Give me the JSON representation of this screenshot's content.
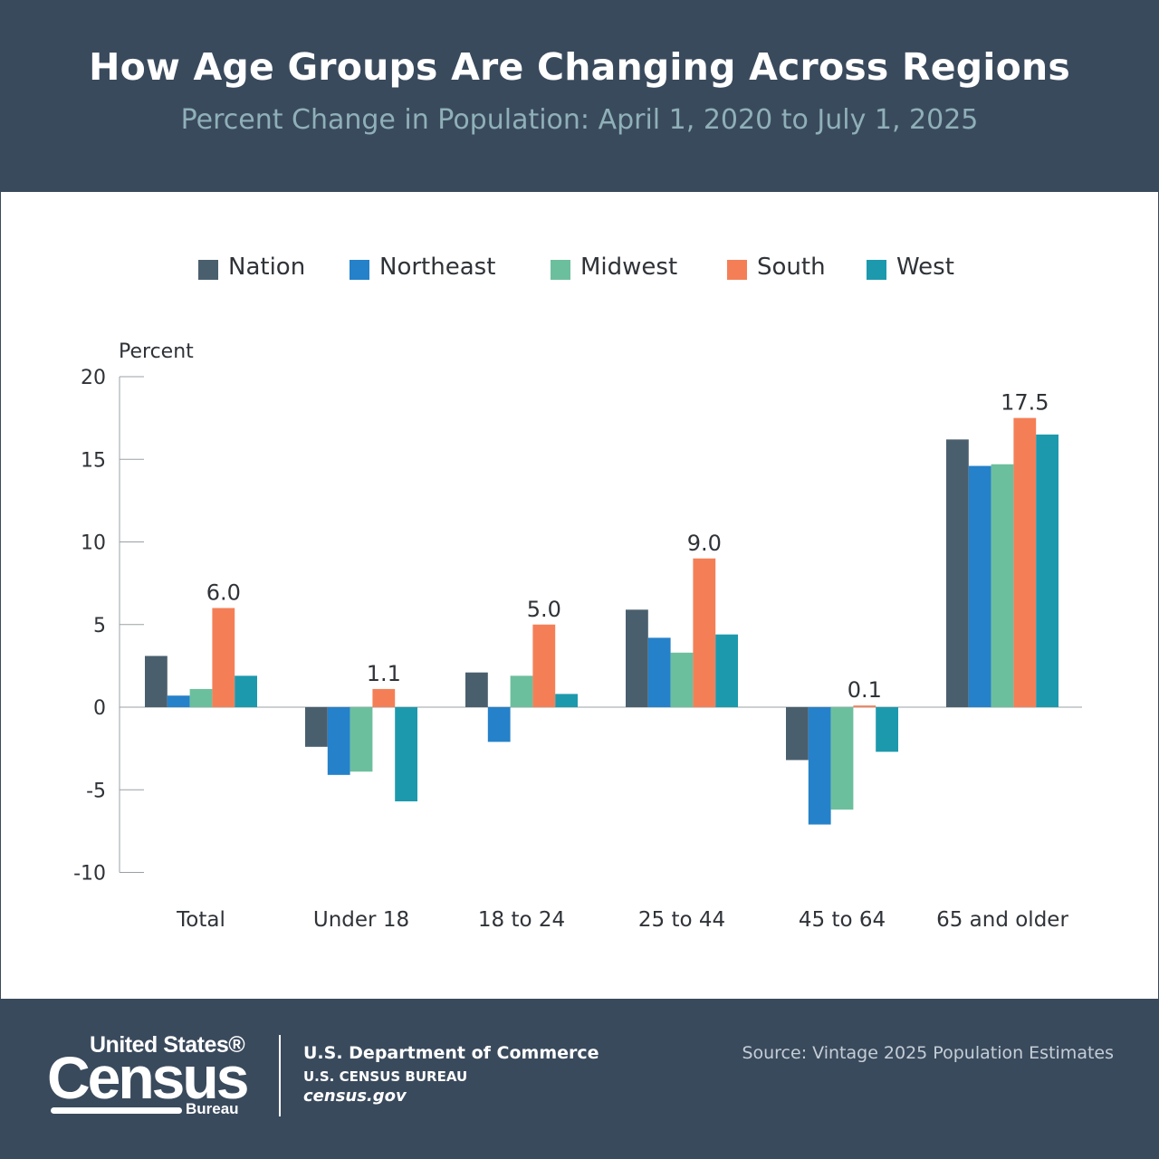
{
  "header": {
    "title": "How Age Groups Are Changing Across Regions",
    "subtitle": "Percent Change in Population: April 1, 2020 to July 1, 2025"
  },
  "chart_data": {
    "type": "bar",
    "ylabel": "Percent",
    "xlabel": "",
    "ylim": [
      -10,
      20
    ],
    "yticks": [
      20,
      15,
      10,
      5,
      0,
      -5,
      -10
    ],
    "legend_position": "top",
    "grid": false,
    "categories": [
      "Total",
      "Under 18",
      "18 to 24",
      "25 to 44",
      "45 to 64",
      "65 and older"
    ],
    "series": [
      {
        "name": "Nation",
        "color": "#4a5f6e",
        "values": [
          3.1,
          -2.4,
          2.1,
          5.9,
          -3.2,
          16.2
        ]
      },
      {
        "name": "Northeast",
        "color": "#2581c9",
        "values": [
          0.7,
          -4.1,
          -2.1,
          4.2,
          -7.1,
          14.6
        ]
      },
      {
        "name": "Midwest",
        "color": "#6cbf9d",
        "values": [
          1.1,
          -3.9,
          1.9,
          3.3,
          -6.2,
          14.7
        ]
      },
      {
        "name": "South",
        "color": "#f47f56",
        "values": [
          6.0,
          1.1,
          5.0,
          9.0,
          0.1,
          17.5
        ]
      },
      {
        "name": "West",
        "color": "#1d99ad",
        "values": [
          1.9,
          -5.7,
          0.8,
          4.4,
          -2.7,
          16.5
        ]
      }
    ],
    "data_labels": [
      {
        "category": "Total",
        "series": "South",
        "text": "6.0"
      },
      {
        "category": "Under 18",
        "series": "South",
        "text": "1.1"
      },
      {
        "category": "18 to 24",
        "series": "South",
        "text": "5.0"
      },
      {
        "category": "25 to 44",
        "series": "South",
        "text": "9.0"
      },
      {
        "category": "45 to 64",
        "series": "South",
        "text": "0.1"
      },
      {
        "category": "65 and older",
        "series": "South",
        "text": "17.5"
      }
    ]
  },
  "footer": {
    "logo_top": "United States®",
    "logo_main": "Census",
    "logo_sub": "Bureau",
    "department": "U.S. Department of Commerce",
    "bureau": "U.S. CENSUS BUREAU",
    "website": "census.gov",
    "source": "Source: Vintage 2025 Population Estimates"
  }
}
